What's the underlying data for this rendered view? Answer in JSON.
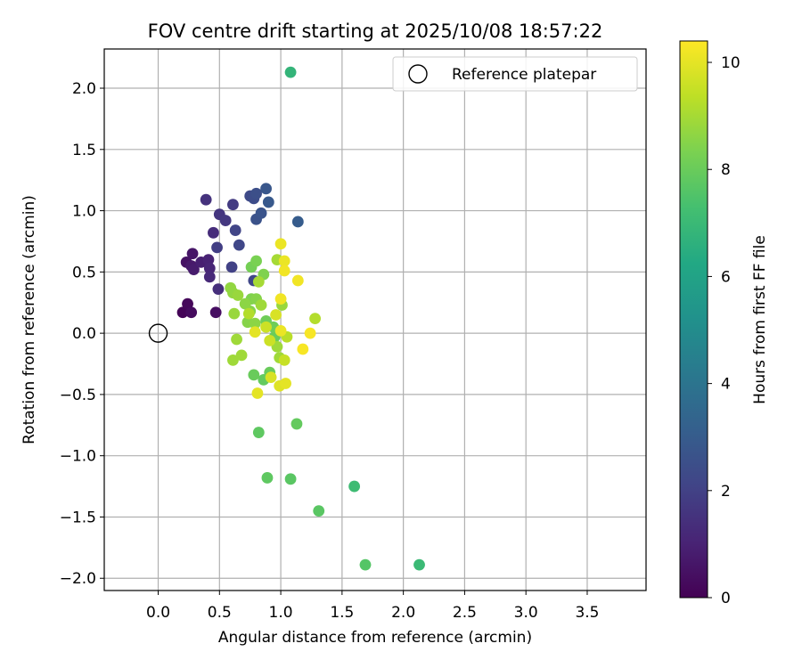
{
  "chart_data": {
    "type": "scatter",
    "title": "FOV centre drift starting at 2025/10/08 18:57:22",
    "xlabel": "Angular distance from reference (arcmin)",
    "ylabel": "Rotation from reference (arcmin)",
    "xlim": [
      -0.44,
      3.98
    ],
    "ylim": [
      -2.1,
      2.32
    ],
    "xticks": [
      0.0,
      0.5,
      1.0,
      1.5,
      2.0,
      2.5,
      3.0,
      3.5
    ],
    "xtick_labels": [
      "0.0",
      "0.5",
      "1.0",
      "1.5",
      "2.0",
      "2.5",
      "3.0",
      "3.5"
    ],
    "yticks": [
      2.0,
      1.5,
      1.0,
      0.5,
      0.0,
      -0.5,
      -1.0,
      -1.5,
      -2.0
    ],
    "ytick_labels": [
      "2.0",
      "1.5",
      "1.0",
      "0.5",
      "0.0",
      "−0.5",
      "−1.0",
      "−1.5",
      "−2.0"
    ],
    "grid": true,
    "legend": {
      "position": "top-right",
      "entries": [
        {
          "label": "Reference platepar",
          "marker": "open-circle",
          "color": "#000000"
        }
      ]
    },
    "reference_point": {
      "x": 0.0,
      "y": 0.0
    },
    "colorbar": {
      "label": "Hours from first FF file",
      "colormap": "viridis",
      "range": [
        0,
        10.4
      ],
      "ticks": [
        0,
        2,
        4,
        6,
        8,
        10
      ],
      "tick_labels": [
        "0",
        "2",
        "4",
        "6",
        "8",
        "10"
      ]
    },
    "series": [
      {
        "name": "FOV centre",
        "points": [
          {
            "x": 0.2,
            "y": 0.17,
            "t": 0.1
          },
          {
            "x": 0.24,
            "y": 0.24,
            "t": 0.2
          },
          {
            "x": 0.27,
            "y": 0.17,
            "t": 0.3
          },
          {
            "x": 0.47,
            "y": 0.17,
            "t": 0.4
          },
          {
            "x": 0.23,
            "y": 0.58,
            "t": 0.5
          },
          {
            "x": 0.28,
            "y": 0.65,
            "t": 0.6
          },
          {
            "x": 0.27,
            "y": 0.55,
            "t": 0.7
          },
          {
            "x": 0.29,
            "y": 0.52,
            "t": 0.8
          },
          {
            "x": 0.35,
            "y": 0.58,
            "t": 0.9
          },
          {
            "x": 0.41,
            "y": 0.6,
            "t": 1.0
          },
          {
            "x": 0.42,
            "y": 0.53,
            "t": 1.1
          },
          {
            "x": 0.42,
            "y": 0.46,
            "t": 1.2
          },
          {
            "x": 0.45,
            "y": 0.82,
            "t": 1.3
          },
          {
            "x": 0.49,
            "y": 0.36,
            "t": 1.4
          },
          {
            "x": 0.39,
            "y": 1.09,
            "t": 1.5
          },
          {
            "x": 0.5,
            "y": 0.97,
            "t": 1.6
          },
          {
            "x": 0.55,
            "y": 0.92,
            "t": 1.7
          },
          {
            "x": 0.61,
            "y": 1.05,
            "t": 1.8
          },
          {
            "x": 0.48,
            "y": 0.7,
            "t": 1.9
          },
          {
            "x": 0.6,
            "y": 0.54,
            "t": 2.0
          },
          {
            "x": 0.63,
            "y": 0.84,
            "t": 2.1
          },
          {
            "x": 0.66,
            "y": 0.72,
            "t": 2.2
          },
          {
            "x": 0.75,
            "y": 1.12,
            "t": 2.3
          },
          {
            "x": 0.78,
            "y": 1.1,
            "t": 2.4
          },
          {
            "x": 0.8,
            "y": 1.14,
            "t": 2.5
          },
          {
            "x": 0.8,
            "y": 0.93,
            "t": 2.6
          },
          {
            "x": 0.84,
            "y": 0.98,
            "t": 2.7
          },
          {
            "x": 0.88,
            "y": 1.18,
            "t": 2.8
          },
          {
            "x": 0.9,
            "y": 1.07,
            "t": 2.9
          },
          {
            "x": 1.14,
            "y": 0.91,
            "t": 3.0
          },
          {
            "x": 0.78,
            "y": 0.43,
            "t": 2.2
          },
          {
            "x": 1.08,
            "y": 2.13,
            "t": 6.8
          },
          {
            "x": 2.13,
            "y": -1.89,
            "t": 7.0
          },
          {
            "x": 1.6,
            "y": -1.25,
            "t": 7.1
          },
          {
            "x": 1.69,
            "y": -1.89,
            "t": 7.6
          },
          {
            "x": 1.31,
            "y": -1.45,
            "t": 7.7
          },
          {
            "x": 1.08,
            "y": -1.19,
            "t": 7.7
          },
          {
            "x": 0.89,
            "y": -1.18,
            "t": 7.8
          },
          {
            "x": 0.82,
            "y": -0.81,
            "t": 7.8
          },
          {
            "x": 1.13,
            "y": -0.74,
            "t": 7.9
          },
          {
            "x": 0.86,
            "y": -0.38,
            "t": 7.9
          },
          {
            "x": 0.78,
            "y": -0.34,
            "t": 8.0
          },
          {
            "x": 0.91,
            "y": -0.32,
            "t": 8.0
          },
          {
            "x": 0.95,
            "y": -0.03,
            "t": 8.0
          },
          {
            "x": 0.94,
            "y": 0.05,
            "t": 8.1
          },
          {
            "x": 0.88,
            "y": 0.1,
            "t": 8.1
          },
          {
            "x": 0.76,
            "y": 0.54,
            "t": 8.2
          },
          {
            "x": 0.8,
            "y": 0.59,
            "t": 8.3
          },
          {
            "x": 0.86,
            "y": 0.48,
            "t": 8.4
          },
          {
            "x": 0.76,
            "y": 0.28,
            "t": 8.4
          },
          {
            "x": 0.8,
            "y": 0.28,
            "t": 8.5
          },
          {
            "x": 0.75,
            "y": 0.18,
            "t": 8.5
          },
          {
            "x": 0.73,
            "y": 0.09,
            "t": 8.5
          },
          {
            "x": 0.79,
            "y": 0.08,
            "t": 8.6
          },
          {
            "x": 0.71,
            "y": 0.24,
            "t": 8.6
          },
          {
            "x": 0.59,
            "y": 0.37,
            "t": 8.7
          },
          {
            "x": 0.61,
            "y": 0.33,
            "t": 8.7
          },
          {
            "x": 0.62,
            "y": 0.16,
            "t": 8.8
          },
          {
            "x": 0.65,
            "y": 0.31,
            "t": 8.8
          },
          {
            "x": 0.64,
            "y": -0.05,
            "t": 8.9
          },
          {
            "x": 0.61,
            "y": -0.22,
            "t": 8.9
          },
          {
            "x": 0.68,
            "y": -0.18,
            "t": 8.9
          },
          {
            "x": 0.84,
            "y": 0.23,
            "t": 8.9
          },
          {
            "x": 0.97,
            "y": -0.11,
            "t": 8.9
          },
          {
            "x": 0.99,
            "y": -0.2,
            "t": 8.9
          },
          {
            "x": 1.01,
            "y": 0.23,
            "t": 8.8
          },
          {
            "x": 0.97,
            "y": 0.6,
            "t": 9.0
          },
          {
            "x": 0.82,
            "y": 0.42,
            "t": 9.0
          },
          {
            "x": 0.74,
            "y": 0.16,
            "t": 9.2
          },
          {
            "x": 1.28,
            "y": 0.12,
            "t": 9.2
          },
          {
            "x": 1.05,
            "y": -0.03,
            "t": 9.3
          },
          {
            "x": 1.03,
            "y": -0.22,
            "t": 9.5
          },
          {
            "x": 0.91,
            "y": -0.06,
            "t": 9.6
          },
          {
            "x": 0.88,
            "y": 0.05,
            "t": 9.6
          },
          {
            "x": 0.96,
            "y": 0.15,
            "t": 9.8
          },
          {
            "x": 0.92,
            "y": -0.36,
            "t": 9.8
          },
          {
            "x": 0.99,
            "y": -0.43,
            "t": 9.9
          },
          {
            "x": 1.04,
            "y": -0.41,
            "t": 10.0
          },
          {
            "x": 0.81,
            "y": -0.49,
            "t": 10.0
          },
          {
            "x": 0.79,
            "y": 0.01,
            "t": 10.0
          },
          {
            "x": 1.0,
            "y": 0.02,
            "t": 10.1
          },
          {
            "x": 1.0,
            "y": 0.73,
            "t": 10.1
          },
          {
            "x": 1.03,
            "y": 0.59,
            "t": 10.1
          },
          {
            "x": 1.03,
            "y": 0.51,
            "t": 10.2
          },
          {
            "x": 1.14,
            "y": 0.43,
            "t": 10.2
          },
          {
            "x": 1.0,
            "y": 0.28,
            "t": 10.2
          },
          {
            "x": 1.18,
            "y": -0.13,
            "t": 10.3
          },
          {
            "x": 1.24,
            "y": 0.0,
            "t": 10.3
          }
        ]
      }
    ]
  }
}
